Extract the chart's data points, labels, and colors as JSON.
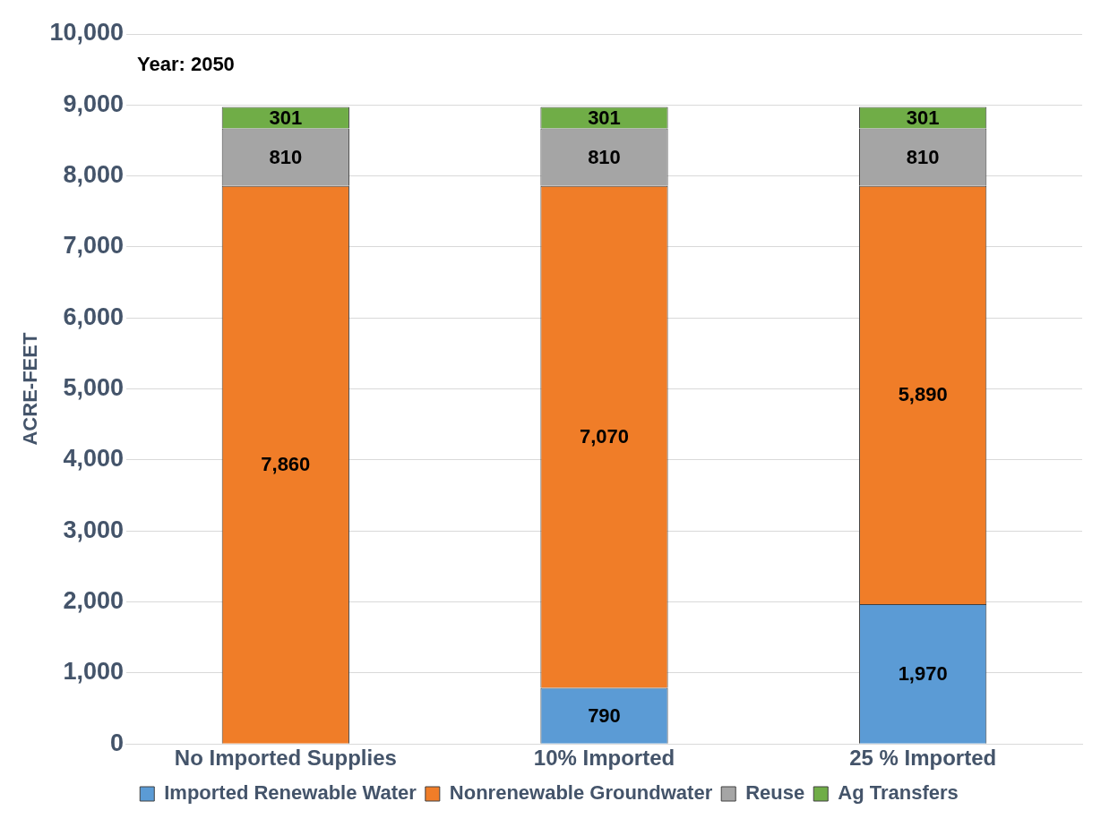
{
  "chart_data": {
    "type": "bar",
    "stacked": true,
    "ylabel": "ACRE-FEET",
    "annotations": [
      "Year: 2050"
    ],
    "categories": [
      "No Imported Supplies",
      "10% Imported",
      "25 % Imported"
    ],
    "series": [
      {
        "name": "Imported Renewable Water",
        "color": "#5b9bd5",
        "values": [
          null,
          790,
          1970
        ],
        "value_labels": [
          null,
          "790",
          "1,970"
        ]
      },
      {
        "name": "Nonrenewable Groundwater",
        "color": "#f07d28",
        "values": [
          7860,
          7070,
          5890
        ],
        "value_labels": [
          "7,860",
          "7,070",
          "5,890"
        ]
      },
      {
        "name": "Reuse",
        "color": "#a5a5a5",
        "values": [
          810,
          810,
          810
        ],
        "value_labels": [
          "810",
          "810",
          "810"
        ]
      },
      {
        "name": "Ag Transfers",
        "color": "#70ad47",
        "values": [
          301,
          301,
          301
        ],
        "value_labels": [
          "301",
          "301",
          "301"
        ]
      }
    ],
    "ylim": [
      0,
      10000
    ],
    "yticks": [
      {
        "value": 0,
        "label": "0"
      },
      {
        "value": 1000,
        "label": "1,000"
      },
      {
        "value": 2000,
        "label": "2,000"
      },
      {
        "value": 3000,
        "label": "3,000"
      },
      {
        "value": 4000,
        "label": "4,000"
      },
      {
        "value": 5000,
        "label": "5,000"
      },
      {
        "value": 6000,
        "label": "6,000"
      },
      {
        "value": 7000,
        "label": "7,000"
      },
      {
        "value": 8000,
        "label": "8,000"
      },
      {
        "value": 9000,
        "label": "9,000"
      },
      {
        "value": 10000,
        "label": "10,000"
      }
    ],
    "grid": "y",
    "legend": "bottom"
  }
}
